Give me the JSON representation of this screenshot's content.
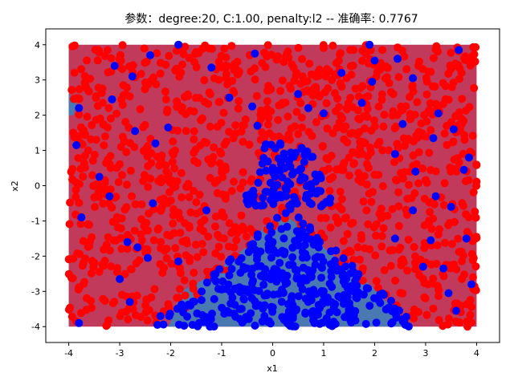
{
  "chart_data": {
    "type": "scatter",
    "title": "参数：degree:20, C:1.00, penalty:l2 -- 准确率: 0.7767",
    "xlabel": "x1",
    "ylabel": "x2",
    "xlim": [
      -4.45,
      4.45
    ],
    "ylim": [
      -4.45,
      4.45
    ],
    "xticks": [
      -4,
      -3,
      -2,
      -1,
      0,
      1,
      2,
      3,
      4
    ],
    "yticks": [
      -4,
      -3,
      -2,
      -1,
      0,
      1,
      2,
      3,
      4
    ],
    "grid": false,
    "legend": "none",
    "decision_regions": {
      "domain": [
        -4,
        4
      ],
      "region_colors": {
        "class_0": "#c23a5b",
        "class_1": "#4a78b0"
      },
      "class_1_region_polygon": [
        [
          -2.05,
          -4
        ],
        [
          -1.95,
          -3.7
        ],
        [
          -1.8,
          -3.0
        ],
        [
          -1.4,
          -2.7
        ],
        [
          -0.9,
          -2.2
        ],
        [
          -0.4,
          -1.6
        ],
        [
          -0.1,
          -1.05
        ],
        [
          0.3,
          -0.9
        ],
        [
          0.7,
          -1.3
        ],
        [
          1.1,
          -1.9
        ],
        [
          1.5,
          -2.3
        ],
        [
          1.9,
          -2.8
        ],
        [
          2.3,
          -3.4
        ],
        [
          2.6,
          -3.9
        ],
        [
          2.65,
          -4
        ]
      ]
    },
    "series": [
      {
        "name": "",
        "color": "#ff0000",
        "seed": 11,
        "count": 1180
      },
      {
        "name": "",
        "color": "#0000ff",
        "seed": 7,
        "count": 470
      },
      {
        "name": "",
        "color": "#0000ff",
        "points": [
          [
            -3.85,
            1.15
          ],
          [
            -3.8,
            2.2
          ],
          [
            -3.75,
            -0.9
          ],
          [
            -3.8,
            -3.9
          ],
          [
            -3.4,
            0.25
          ],
          [
            -3.2,
            -0.3
          ],
          [
            -3.15,
            2.45
          ],
          [
            -3.1,
            3.4
          ],
          [
            -3.0,
            -2.65
          ],
          [
            -2.85,
            -1.6
          ],
          [
            -2.8,
            -3.3
          ],
          [
            -2.75,
            3.1
          ],
          [
            -2.65,
            -1.75
          ],
          [
            -2.7,
            1.55
          ],
          [
            -2.45,
            -2.05
          ],
          [
            -2.35,
            -0.5
          ],
          [
            -2.4,
            3.7
          ],
          [
            -2.3,
            1.2
          ],
          [
            -2.2,
            -3.7
          ],
          [
            -2.05,
            1.65
          ],
          [
            -1.85,
            4.0
          ],
          [
            -1.85,
            -2.15
          ],
          [
            -1.3,
            -0.7
          ],
          [
            -1.2,
            3.35
          ],
          [
            -0.85,
            2.5
          ],
          [
            -0.45,
            -0.25
          ],
          [
            -0.4,
            2.25
          ],
          [
            -0.35,
            3.75
          ],
          [
            -0.3,
            1.7
          ],
          [
            0.5,
            2.6
          ],
          [
            0.7,
            2.2
          ],
          [
            1.0,
            2.05
          ],
          [
            1.0,
            -3.0
          ],
          [
            1.35,
            3.2
          ],
          [
            1.75,
            2.35
          ],
          [
            1.95,
            2.95
          ],
          [
            1.9,
            4.0
          ],
          [
            2.0,
            3.55
          ],
          [
            2.4,
            -1.5
          ],
          [
            2.4,
            0.9
          ],
          [
            2.45,
            3.6
          ],
          [
            2.55,
            1.75
          ],
          [
            2.6,
            -3.95
          ],
          [
            2.75,
            3.05
          ],
          [
            2.75,
            -0.7
          ],
          [
            2.8,
            0.4
          ],
          [
            2.95,
            -2.3
          ],
          [
            3.1,
            -1.55
          ],
          [
            3.15,
            1.35
          ],
          [
            3.2,
            -0.3
          ],
          [
            3.25,
            2.05
          ],
          [
            3.35,
            -2.35
          ],
          [
            3.45,
            -3.05
          ],
          [
            3.5,
            -0.6
          ],
          [
            3.55,
            1.6
          ],
          [
            3.6,
            -3.55
          ],
          [
            3.65,
            3.85
          ],
          [
            3.75,
            0.45
          ],
          [
            3.8,
            -1.5
          ],
          [
            3.85,
            0.8
          ],
          [
            3.9,
            -2.8
          ]
        ]
      }
    ]
  }
}
